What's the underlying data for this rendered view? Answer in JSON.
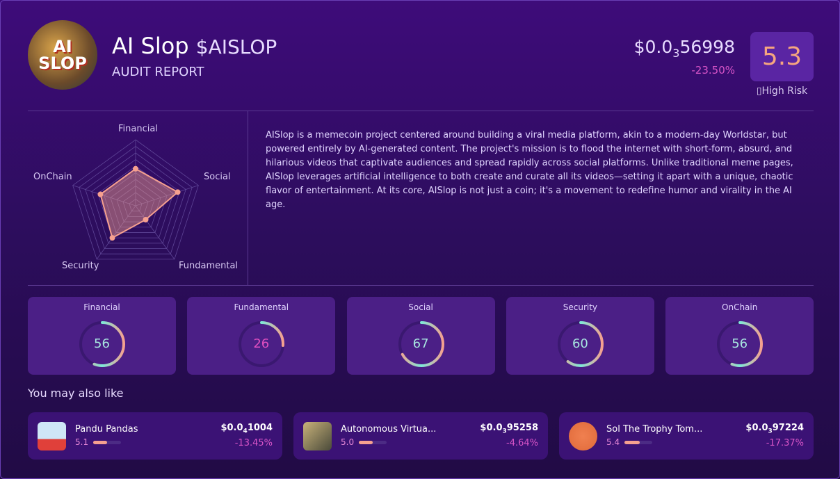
{
  "header": {
    "logo_text": "AI SLOP",
    "name": "AI Slop",
    "ticker": "$AISLOP",
    "subtitle": "AUDIT REPORT",
    "price_prefix": "$0.0",
    "price_zeros": "3",
    "price_digits": "56998",
    "change": "-23.50%",
    "score": "5.3",
    "risk_label": "▯High Risk"
  },
  "description": "AISlop is a memecoin project centered around building a viral media platform, akin to a modern-day Worldstar, but powered entirely by AI-generated content. The project's mission is to flood the internet with short-form, absurd, and hilarious videos that captivate audiences and spread rapidly across social platforms. Unlike traditional meme pages, AISlop leverages artificial intelligence to both create and curate all its videos—setting it apart with a unique, chaotic flavor of entertainment. At its core, AISlop is not just a coin; it's a movement to redefine humor and virality in the AI age.",
  "chart_data": {
    "type": "radar",
    "axes": [
      "Financial",
      "Social",
      "Fundamental",
      "Security",
      "OnChain"
    ],
    "values": [
      56,
      67,
      26,
      60,
      56
    ],
    "range": [
      0,
      100
    ],
    "rings": 10,
    "color": "#f6a08f"
  },
  "scores": [
    {
      "label": "Financial",
      "value": 56,
      "color": "#a8e6e0"
    },
    {
      "label": "Fundamental",
      "value": 26,
      "color": "#e04fc0"
    },
    {
      "label": "Social",
      "value": 67,
      "color": "#a8e6e0"
    },
    {
      "label": "Security",
      "value": 60,
      "color": "#a8e6e0"
    },
    {
      "label": "OnChain",
      "value": 56,
      "color": "#a8e6e0"
    }
  ],
  "gauge_colors": {
    "start": "#f6a08f",
    "end": "#7ee8d8",
    "track": "#3a1870"
  },
  "also_like_title": "You may also like",
  "recommendations": [
    {
      "name": "Pandu Pandas",
      "score": "5.1",
      "score_value": 5.1,
      "price_prefix": "$0.0",
      "price_zeros": "4",
      "price_digits": "1004",
      "change": "-13.45%"
    },
    {
      "name": "Autonomous Virtua...",
      "score": "5.0",
      "score_value": 5.0,
      "price_prefix": "$0.0",
      "price_zeros": "3",
      "price_digits": "95258",
      "change": "-4.64%"
    },
    {
      "name": "Sol The Trophy Tom...",
      "score": "5.4",
      "score_value": 5.4,
      "price_prefix": "$0.0",
      "price_zeros": "3",
      "price_digits": "97224",
      "change": "-17.37%"
    }
  ]
}
